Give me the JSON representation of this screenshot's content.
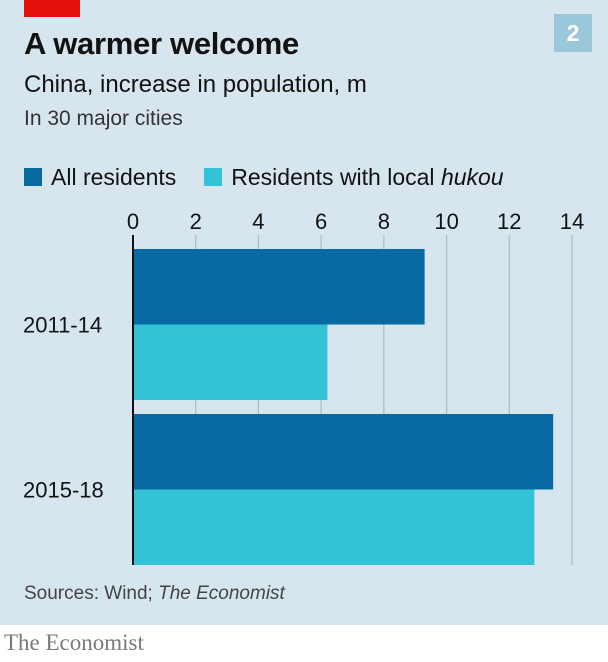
{
  "header": {
    "badge": "2",
    "title": "A warmer welcome",
    "subtitle": "China, increase in population, m",
    "subtitle2": "In 30 major cities"
  },
  "legend": [
    {
      "label": "All residents",
      "label_emphasis": "",
      "color": "#076aa0"
    },
    {
      "label": "Residents with local ",
      "label_emphasis": "hukou",
      "color": "#33c2d6"
    }
  ],
  "chart_data": {
    "type": "bar",
    "orientation": "horizontal",
    "categories": [
      "2011-14",
      "2015-18"
    ],
    "series": [
      {
        "name": "All residents",
        "values": [
          9.3,
          13.4
        ]
      },
      {
        "name": "Residents with local hukou",
        "values": [
          6.2,
          12.8
        ]
      }
    ],
    "xlim": [
      0,
      14
    ],
    "xticks": [
      0,
      2,
      4,
      6,
      8,
      10,
      12,
      14
    ],
    "tick_position": "top",
    "grid": true,
    "legend_position": "top-left"
  },
  "footer": {
    "source_prefix": "Sources: Wind; ",
    "source_emphasis": "The Economist",
    "brand": "The Economist"
  }
}
